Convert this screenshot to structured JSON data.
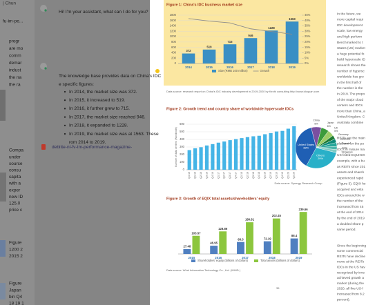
{
  "sidebar": {
    "tab": "| Chun",
    "path": "fu-im-pe...",
    "snippets": [
      [
        "progr",
        "are mo",
        "comm",
        "demar",
        "indust",
        "the na",
        "the ra"
      ],
      [
        "Compa",
        "under",
        "source",
        "consu",
        "capita",
        "with a",
        "exper",
        "new ID",
        "125.0",
        "price c"
      ],
      [
        "Figure",
        "1200 2",
        "2015 2"
      ],
      [
        "Figure",
        "Japan",
        "bin Q4",
        "18 19 1"
      ]
    ]
  },
  "chat": {
    "greeting": "Hi! I'm your assistant, what can I do for you?",
    "answer_lines": [
      "The knowledge base provides data on China's IDC",
      "e specific figures:"
    ],
    "items": [
      "In 2014, the market size was 372.",
      "In 2015, it increased to 519.",
      "In 2016, it further grew to 715.",
      "In 2017, the market size reached 946.",
      "In 2018, it expanded to 1228.",
      "In 2019, the market size was at 1563. These"
    ],
    "tail": "rom 2014 to 2019.",
    "link": "debitte-nl-fv-tm-performance-magazine-"
  },
  "document": {
    "page_number": "35",
    "column": [
      [
        "In the future, we",
        "more capital requi",
        "IDC development",
        "scale, low energy",
        "and high perform",
        "Benchmarked to t",
        "States (US) market",
        "a huge potential fo",
        "build hyperscale ID",
        "research shows the",
        "number of hypersc",
        "worldwide has gro",
        "in the first half of",
        "the number in the",
        "in 2019. The propo",
        "of the major cloud",
        "centers and IDCs",
        "more than China, a",
        "United Kingdom. C",
        "Australia combine"
      ],
      [
        "REITs are the main",
        "platform for the pu",
        "IDCs in mature ma",
        "US-listed EQUINIX",
        "example, with a bu",
        "as REITs since 201",
        "assets and shareh",
        "experienced rapid",
        "(Figure 3). EQIX he",
        "acquired and esta",
        "IDCs around the w",
        "the number of the",
        "increased from 45",
        "at the end of 2014",
        "by the end of 2019",
        "a doubled share p",
        "same period."
      ],
      [
        "Since the beginning",
        "some commercial",
        "REITs have decline",
        "move at the REITs",
        "IDCs in the US hav",
        "recognized by inve",
        "achieved growth a",
        "market (during the",
        "2020, all five US-l",
        "increased from 8.2",
        "percent)."
      ]
    ]
  },
  "chart_data": [
    {
      "type": "bar",
      "title": "Figure 1: China's IDC business market size",
      "categories": [
        "2014",
        "2015",
        "2016",
        "2017",
        "2018",
        "2019"
      ],
      "series": [
        {
          "name": "Size (RMB 100 million)",
          "color": "#3a8fc4",
          "values": [
            372,
            519,
            715,
            946,
            1228,
            1563
          ]
        },
        {
          "name": "Growth",
          "type": "line",
          "axis": "y2",
          "color": "#8c8c8c",
          "values": [
            41.8,
            39.5,
            37.8,
            32.3,
            29.8,
            27.3
          ]
        }
      ],
      "ylim": [
        0,
        1800
      ],
      "yticks": [
        0,
        200,
        400,
        600,
        800,
        1000,
        1200,
        1400,
        1600,
        1800
      ],
      "y2lim": [
        0,
        45
      ],
      "y2ticks": [
        {
          "value": 0,
          "label": "0%"
        },
        {
          "value": 5,
          "label": "5%"
        },
        {
          "value": 10,
          "label": "10%"
        },
        {
          "value": 15,
          "label": "15%"
        },
        {
          "value": 20,
          "label": "20%"
        },
        {
          "value": 25,
          "label": "25%"
        },
        {
          "value": 30,
          "label": "30%"
        },
        {
          "value": 35,
          "label": "35%"
        },
        {
          "value": 40,
          "label": "40%"
        },
        {
          "value": 45,
          "label": "45%"
        }
      ],
      "grid": true,
      "data_labels": true,
      "source": "Data source: research report on China's IDC industry development in 2019-2020 by Kezhi consulting http://www.idcquan.com"
    },
    {
      "type": "bar",
      "title": "Figure 2: Growth trend and country share of worldwide hyperscale IDCs",
      "y_label": "Number of data centers (Worldwide)",
      "categories": [
        "Q4 15",
        "Q1 16",
        "Q2 16",
        "Q3 16",
        "Q4 16",
        "Q1 17",
        "Q2 17",
        "Q3 17",
        "Q4 17",
        "Q1 18",
        "Q2 18",
        "Q3 18",
        "Q4 18",
        "Q1 19",
        "Q2 19",
        "Q3 19",
        "Q4 19",
        "Q1 20",
        "Q2 20"
      ],
      "values": [
        259,
        283,
        297,
        320,
        338,
        357,
        372,
        390,
        404,
        417,
        430,
        441,
        448,
        468,
        483,
        504,
        512,
        541,
        573
      ],
      "color": "#45b4e6",
      "ylim": [
        0,
        600
      ],
      "yticks": [
        0,
        100,
        200,
        300,
        400,
        500,
        600
      ],
      "grid": true
    },
    {
      "type": "pie",
      "categories": [
        "China",
        "Japan",
        "UK",
        "Germany",
        "Australia",
        "Canada",
        "India",
        "Singapore",
        "Others",
        "United States"
      ],
      "values": [
        8,
        6,
        5,
        3,
        3,
        3,
        2.5,
        2.5,
        29,
        38
      ],
      "value_labels": [
        "8%",
        "6%",
        "5%",
        null,
        null,
        null,
        null,
        null,
        "29%",
        "38%"
      ],
      "colors": [
        "#7b4fa0",
        "#3c9b3c",
        "#9ccc65",
        "#1e7b34",
        "#0f8a7a",
        "#26a69a",
        "#4db6ac",
        "#80cbc4",
        "#29b0c8",
        "#1f5fb4"
      ],
      "source": "Data source: Synergy Research Group"
    },
    {
      "type": "bar",
      "title": "Figure 3: Growth of EQIX total assets/shareholders' equity",
      "categories": [
        "2015",
        "2016",
        "2017",
        "2018",
        "2019"
      ],
      "series": [
        {
          "name": "Shareholders' equity (billions of dollars)",
          "color": "#4f7fc0",
          "values": [
            27.48,
            46.95,
            68.3,
            72.19,
            88.4
          ]
        },
        {
          "name": "Total assets (billions of dollars)",
          "color": "#8cc63e",
          "values": [
            103.57,
            128.86,
            180.81,
            202.45,
            239.66
          ]
        }
      ],
      "ylim": [
        0,
        260
      ],
      "data_labels": true,
      "source": "Data source: Wind Information Technology Co., Ltd. (WIND )"
    }
  ]
}
